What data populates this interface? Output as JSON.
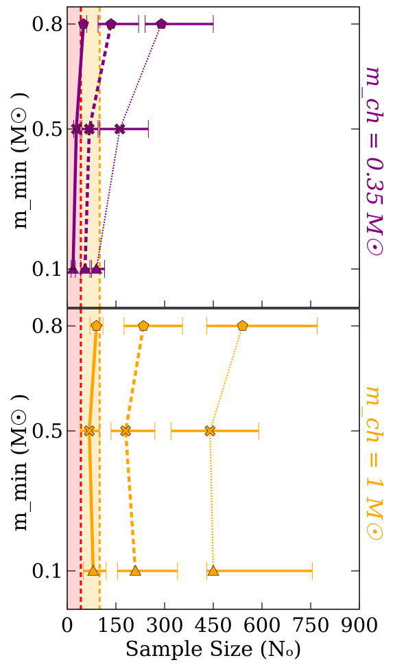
{
  "colors": {
    "purple": "#800080",
    "orange": "#FFA500",
    "red_line": "#FF0000",
    "red_band": "#FFD6D6",
    "orange_band": "#FFEDCC"
  },
  "chart_data": [
    {
      "type": "line",
      "panel": "top",
      "side_label": "m_ch = 0.35 M☉",
      "side_label_color": "#800080",
      "ylabel": "m_min (M☉ )",
      "xlabel": "",
      "xlim": [
        0,
        900
      ],
      "ylim": [
        0.0,
        0.85
      ],
      "yticks": [
        0.1,
        0.5,
        0.8
      ],
      "ytick_labels": [
        "0.1",
        "0.5",
        "0.8"
      ],
      "vlines": [
        {
          "x": 42,
          "color": "#FF0000",
          "style": "dashed"
        },
        {
          "x": 100,
          "color": "#FFA500",
          "style": "dashed"
        }
      ],
      "bands": [
        {
          "x0": 0,
          "x1": 42,
          "color": "#FFD6D6"
        },
        {
          "x0": 42,
          "x1": 100,
          "color": "#FFEDCC"
        }
      ],
      "series": [
        {
          "style": "solid",
          "color": "#800080",
          "points": [
            {
              "x": 18,
              "y": 0.1,
              "xerr": [
                12,
                25
              ],
              "marker": "triangle"
            },
            {
              "x": 28,
              "y": 0.5,
              "xerr": [
                20,
                40
              ],
              "marker": "cross"
            },
            {
              "x": 50,
              "y": 0.8,
              "xerr": [
                40,
                60
              ],
              "marker": "pentagon"
            }
          ]
        },
        {
          "style": "dashed",
          "color": "#800080",
          "points": [
            {
              "x": 55,
              "y": 0.1,
              "xerr": [
                42,
                70
              ],
              "marker": "triangle"
            },
            {
              "x": 68,
              "y": 0.5,
              "xerr": [
                45,
                95
              ],
              "marker": "cross"
            },
            {
              "x": 135,
              "y": 0.8,
              "xerr": [
                95,
                220
              ],
              "marker": "pentagon"
            }
          ]
        },
        {
          "style": "dotted",
          "color": "#800080",
          "points": [
            {
              "x": 90,
              "y": 0.1,
              "xerr": [
                75,
                115
              ],
              "marker": "triangle"
            },
            {
              "x": 162,
              "y": 0.5,
              "xerr": [
                100,
                250
              ],
              "marker": "cross"
            },
            {
              "x": 290,
              "y": 0.8,
              "xerr": [
                240,
                450
              ],
              "marker": "pentagon"
            }
          ]
        }
      ]
    },
    {
      "type": "line",
      "panel": "bottom",
      "side_label": "m_ch = 1 M☉",
      "side_label_color": "#FFA500",
      "ylabel": "m_min (M☉ )",
      "xlabel": "Sample Size (Nₒ)",
      "xlim": [
        0,
        900
      ],
      "ylim": [
        0.0,
        0.85
      ],
      "xticks": [
        0,
        150,
        300,
        450,
        600,
        750,
        900
      ],
      "xtick_labels": [
        "0",
        "150",
        "300",
        "450",
        "600",
        "750",
        "900"
      ],
      "yticks": [
        0.1,
        0.5,
        0.8
      ],
      "ytick_labels": [
        "0.1",
        "0.5",
        "0.8"
      ],
      "vlines": [
        {
          "x": 42,
          "color": "#FF0000",
          "style": "dashed"
        },
        {
          "x": 100,
          "color": "#FFA500",
          "style": "dashed"
        }
      ],
      "bands": [
        {
          "x0": 0,
          "x1": 42,
          "color": "#FFD6D6"
        },
        {
          "x0": 42,
          "x1": 100,
          "color": "#FFEDCC"
        }
      ],
      "series": [
        {
          "style": "solid",
          "color": "#FFA500",
          "points": [
            {
              "x": 80,
              "y": 0.1,
              "xerr": [
                50,
                120
              ],
              "marker": "triangle"
            },
            {
              "x": 68,
              "y": 0.5,
              "xerr": [
                40,
                100
              ],
              "marker": "cross"
            },
            {
              "x": 90,
              "y": 0.8,
              "xerr": [
                70,
                110
              ],
              "marker": "pentagon"
            }
          ]
        },
        {
          "style": "dashed",
          "color": "#FFA500",
          "points": [
            {
              "x": 210,
              "y": 0.1,
              "xerr": [
                155,
                340
              ],
              "marker": "triangle"
            },
            {
              "x": 180,
              "y": 0.5,
              "xerr": [
                135,
                270
              ],
              "marker": "cross"
            },
            {
              "x": 235,
              "y": 0.8,
              "xerr": [
                175,
                355
              ],
              "marker": "pentagon"
            }
          ]
        },
        {
          "style": "dotted",
          "color": "#FFA500",
          "points": [
            {
              "x": 450,
              "y": 0.1,
              "xerr": [
                430,
                755
              ],
              "marker": "triangle"
            },
            {
              "x": 440,
              "y": 0.5,
              "xerr": [
                320,
                590
              ],
              "marker": "cross"
            },
            {
              "x": 540,
              "y": 0.8,
              "xerr": [
                430,
                770
              ],
              "marker": "pentagon"
            }
          ]
        }
      ]
    }
  ]
}
